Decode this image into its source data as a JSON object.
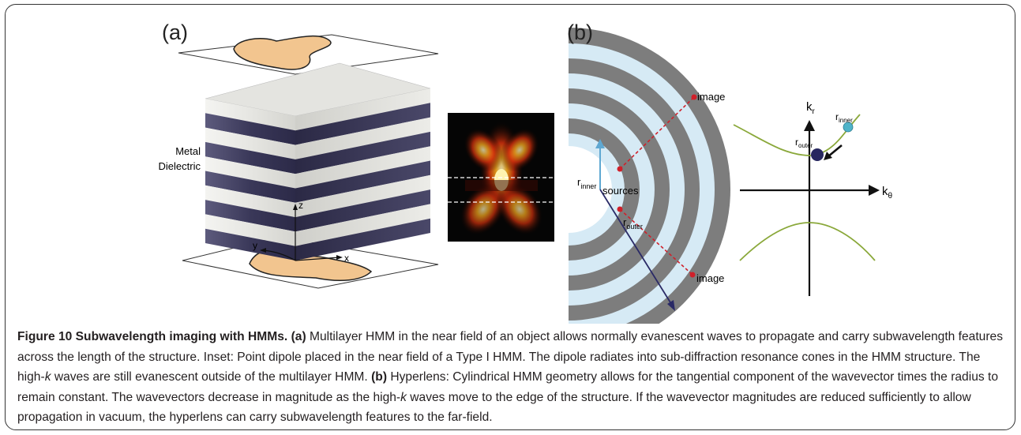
{
  "panel_a": {
    "label": "(a)",
    "metal_label": "Metal",
    "dielectric_label": "Dielectric",
    "axis_z": "z",
    "axis_y": "y",
    "axis_x": "x"
  },
  "panel_b": {
    "label": "(b)",
    "image_top": "image",
    "image_bottom": "image",
    "sources": "sources",
    "r_inner": "r",
    "r_inner_sub": "inner",
    "r_outer": "r",
    "r_outer_sub": "outer",
    "k_r": "k",
    "k_r_sub": "r",
    "k_theta": "k",
    "k_theta_sub": "θ",
    "dot_r_inner": "r",
    "dot_r_inner_sub": "inner",
    "dot_r_outer": "r",
    "dot_r_outer_sub": "outer"
  },
  "caption": {
    "title": "Figure 10 Subwavelength imaging with HMMs.",
    "a_tag": "(a)",
    "a_text_1": " Multilayer HMM in the near field of an object allows normally evanescent waves to propagate and carry subwavelength features across the length of the structure. Inset: Point dipole placed in the near field of a Type I HMM. The dipole radiates into sub-diffraction resonance cones in the HMM structure. The high-",
    "a_k": "k",
    "a_text_2": " waves are still evanescent outside of the multilayer HMM.",
    "b_tag": "(b)",
    "b_text_1": " Hyperlens: Cylindrical HMM geometry allows for the tangential component of the wavevector times the radius to remain constant. The wavevectors decrease in magnitude as the high-",
    "b_k": "k",
    "b_text_2": " waves move to the edge of the structure. If the wavevector magnitudes are reduced sufficiently to allow propagation in vacuum, the hyperlens can carry subwavelength features to the far-field."
  },
  "colors": {
    "metal_layer": "#3c3a5c",
    "dielectric_layer": "#e9e9e6",
    "object_fill": "#f2c58f",
    "ring_gray": "#7d7d7d",
    "ring_blue": "#d6eaf5",
    "dashed_red": "#d0202a",
    "hyperbola_green": "#8aa83a",
    "dot_cyan": "#4fb3c9",
    "dot_navy": "#27275f",
    "r_inner_arrow": "#5fa8d2",
    "r_outer_arrow": "#2a2a66"
  }
}
